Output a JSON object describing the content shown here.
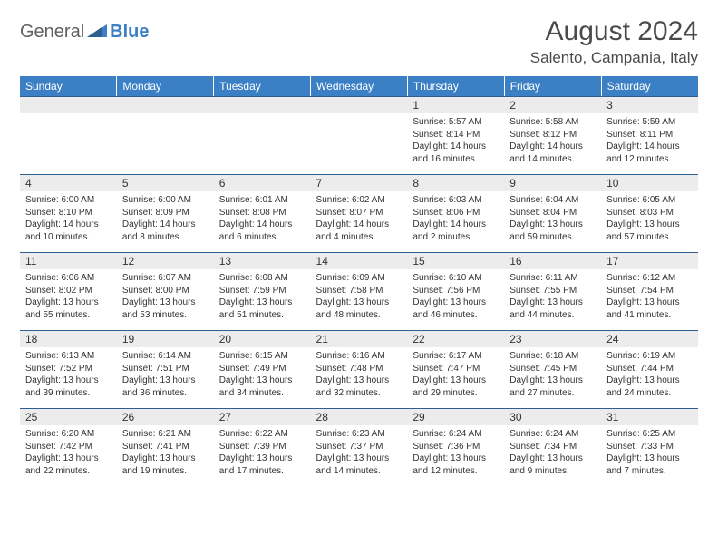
{
  "logo": {
    "part1": "General",
    "part2": "Blue"
  },
  "title": "August 2024",
  "location": "Salento, Campania, Italy",
  "colors": {
    "header_bg": "#3b7fc4",
    "header_text": "#ffffff",
    "daynum_bg": "#ececec",
    "border": "#2f5f91",
    "text": "#333333",
    "logo_gray": "#606060",
    "logo_blue": "#3b7fc4"
  },
  "weekdays": [
    "Sunday",
    "Monday",
    "Tuesday",
    "Wednesday",
    "Thursday",
    "Friday",
    "Saturday"
  ],
  "weeks": [
    [
      {
        "day": "",
        "lines": []
      },
      {
        "day": "",
        "lines": []
      },
      {
        "day": "",
        "lines": []
      },
      {
        "day": "",
        "lines": []
      },
      {
        "day": "1",
        "lines": [
          "Sunrise: 5:57 AM",
          "Sunset: 8:14 PM",
          "Daylight: 14 hours and 16 minutes."
        ]
      },
      {
        "day": "2",
        "lines": [
          "Sunrise: 5:58 AM",
          "Sunset: 8:12 PM",
          "Daylight: 14 hours and 14 minutes."
        ]
      },
      {
        "day": "3",
        "lines": [
          "Sunrise: 5:59 AM",
          "Sunset: 8:11 PM",
          "Daylight: 14 hours and 12 minutes."
        ]
      }
    ],
    [
      {
        "day": "4",
        "lines": [
          "Sunrise: 6:00 AM",
          "Sunset: 8:10 PM",
          "Daylight: 14 hours and 10 minutes."
        ]
      },
      {
        "day": "5",
        "lines": [
          "Sunrise: 6:00 AM",
          "Sunset: 8:09 PM",
          "Daylight: 14 hours and 8 minutes."
        ]
      },
      {
        "day": "6",
        "lines": [
          "Sunrise: 6:01 AM",
          "Sunset: 8:08 PM",
          "Daylight: 14 hours and 6 minutes."
        ]
      },
      {
        "day": "7",
        "lines": [
          "Sunrise: 6:02 AM",
          "Sunset: 8:07 PM",
          "Daylight: 14 hours and 4 minutes."
        ]
      },
      {
        "day": "8",
        "lines": [
          "Sunrise: 6:03 AM",
          "Sunset: 8:06 PM",
          "Daylight: 14 hours and 2 minutes."
        ]
      },
      {
        "day": "9",
        "lines": [
          "Sunrise: 6:04 AM",
          "Sunset: 8:04 PM",
          "Daylight: 13 hours and 59 minutes."
        ]
      },
      {
        "day": "10",
        "lines": [
          "Sunrise: 6:05 AM",
          "Sunset: 8:03 PM",
          "Daylight: 13 hours and 57 minutes."
        ]
      }
    ],
    [
      {
        "day": "11",
        "lines": [
          "Sunrise: 6:06 AM",
          "Sunset: 8:02 PM",
          "Daylight: 13 hours and 55 minutes."
        ]
      },
      {
        "day": "12",
        "lines": [
          "Sunrise: 6:07 AM",
          "Sunset: 8:00 PM",
          "Daylight: 13 hours and 53 minutes."
        ]
      },
      {
        "day": "13",
        "lines": [
          "Sunrise: 6:08 AM",
          "Sunset: 7:59 PM",
          "Daylight: 13 hours and 51 minutes."
        ]
      },
      {
        "day": "14",
        "lines": [
          "Sunrise: 6:09 AM",
          "Sunset: 7:58 PM",
          "Daylight: 13 hours and 48 minutes."
        ]
      },
      {
        "day": "15",
        "lines": [
          "Sunrise: 6:10 AM",
          "Sunset: 7:56 PM",
          "Daylight: 13 hours and 46 minutes."
        ]
      },
      {
        "day": "16",
        "lines": [
          "Sunrise: 6:11 AM",
          "Sunset: 7:55 PM",
          "Daylight: 13 hours and 44 minutes."
        ]
      },
      {
        "day": "17",
        "lines": [
          "Sunrise: 6:12 AM",
          "Sunset: 7:54 PM",
          "Daylight: 13 hours and 41 minutes."
        ]
      }
    ],
    [
      {
        "day": "18",
        "lines": [
          "Sunrise: 6:13 AM",
          "Sunset: 7:52 PM",
          "Daylight: 13 hours and 39 minutes."
        ]
      },
      {
        "day": "19",
        "lines": [
          "Sunrise: 6:14 AM",
          "Sunset: 7:51 PM",
          "Daylight: 13 hours and 36 minutes."
        ]
      },
      {
        "day": "20",
        "lines": [
          "Sunrise: 6:15 AM",
          "Sunset: 7:49 PM",
          "Daylight: 13 hours and 34 minutes."
        ]
      },
      {
        "day": "21",
        "lines": [
          "Sunrise: 6:16 AM",
          "Sunset: 7:48 PM",
          "Daylight: 13 hours and 32 minutes."
        ]
      },
      {
        "day": "22",
        "lines": [
          "Sunrise: 6:17 AM",
          "Sunset: 7:47 PM",
          "Daylight: 13 hours and 29 minutes."
        ]
      },
      {
        "day": "23",
        "lines": [
          "Sunrise: 6:18 AM",
          "Sunset: 7:45 PM",
          "Daylight: 13 hours and 27 minutes."
        ]
      },
      {
        "day": "24",
        "lines": [
          "Sunrise: 6:19 AM",
          "Sunset: 7:44 PM",
          "Daylight: 13 hours and 24 minutes."
        ]
      }
    ],
    [
      {
        "day": "25",
        "lines": [
          "Sunrise: 6:20 AM",
          "Sunset: 7:42 PM",
          "Daylight: 13 hours and 22 minutes."
        ]
      },
      {
        "day": "26",
        "lines": [
          "Sunrise: 6:21 AM",
          "Sunset: 7:41 PM",
          "Daylight: 13 hours and 19 minutes."
        ]
      },
      {
        "day": "27",
        "lines": [
          "Sunrise: 6:22 AM",
          "Sunset: 7:39 PM",
          "Daylight: 13 hours and 17 minutes."
        ]
      },
      {
        "day": "28",
        "lines": [
          "Sunrise: 6:23 AM",
          "Sunset: 7:37 PM",
          "Daylight: 13 hours and 14 minutes."
        ]
      },
      {
        "day": "29",
        "lines": [
          "Sunrise: 6:24 AM",
          "Sunset: 7:36 PM",
          "Daylight: 13 hours and 12 minutes."
        ]
      },
      {
        "day": "30",
        "lines": [
          "Sunrise: 6:24 AM",
          "Sunset: 7:34 PM",
          "Daylight: 13 hours and 9 minutes."
        ]
      },
      {
        "day": "31",
        "lines": [
          "Sunrise: 6:25 AM",
          "Sunset: 7:33 PM",
          "Daylight: 13 hours and 7 minutes."
        ]
      }
    ]
  ]
}
